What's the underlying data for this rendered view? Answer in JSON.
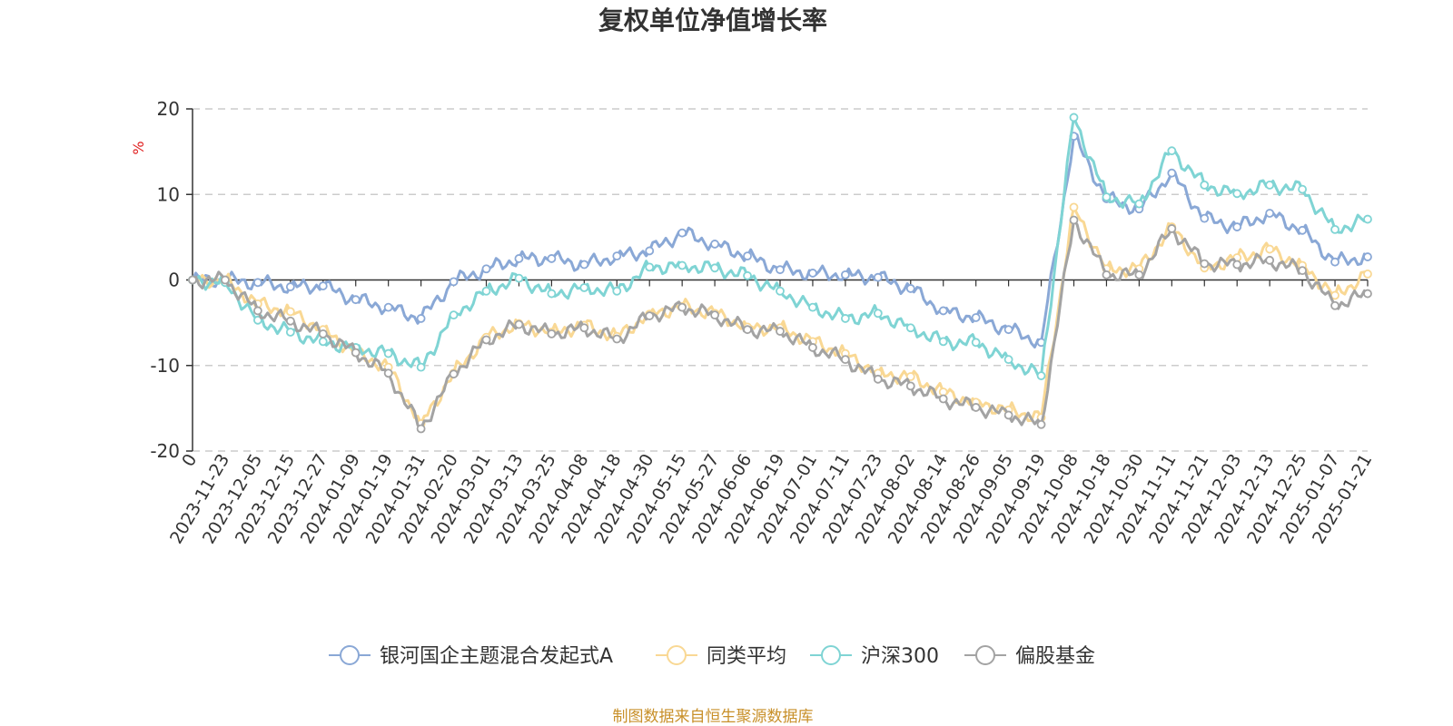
{
  "chart_data": {
    "type": "line",
    "title": "复权单位净值增长率",
    "ylabel": "%",
    "ylim": [
      -20,
      20
    ],
    "yticks": [
      20,
      10,
      0,
      -10,
      -20
    ],
    "grid": true,
    "legend_position": "bottom",
    "source": "制图数据来自恒生聚源数据库",
    "x": [
      "0",
      "2023-11-23",
      "2023-12-05",
      "2023-12-15",
      "2023-12-27",
      "2024-01-09",
      "2024-01-19",
      "2024-01-31",
      "2024-02-20",
      "2024-03-01",
      "2024-03-13",
      "2024-03-25",
      "2024-04-08",
      "2024-04-18",
      "2024-04-30",
      "2024-05-15",
      "2024-05-27",
      "2024-06-06",
      "2024-06-19",
      "2024-07-01",
      "2024-07-11",
      "2024-07-23",
      "2024-08-02",
      "2024-08-14",
      "2024-08-26",
      "2024-09-05",
      "2024-09-19",
      "2024-10-08",
      "2024-10-18",
      "2024-10-30",
      "2024-11-11",
      "2024-11-21",
      "2024-12-03",
      "2024-12-13",
      "2024-12-25",
      "2025-01-07",
      "2025-01-21"
    ],
    "series": [
      {
        "name": "银河国企主题混合发起式A",
        "color": "#8aa8d6",
        "values": [
          0,
          0,
          -0.3,
          -0.8,
          -0.7,
          -2.3,
          -3.2,
          -4.5,
          -0.2,
          1.3,
          2.5,
          2.5,
          1.8,
          2.8,
          3.4,
          5.5,
          4.2,
          2.8,
          1.2,
          0.8,
          0.6,
          0.3,
          -1.0,
          -3.6,
          -4.4,
          -5.8,
          -7.3,
          16.8,
          9.5,
          8.3,
          12.5,
          7.2,
          6.2,
          7.8,
          5.8,
          2.1,
          2.7
        ]
      },
      {
        "name": "同类平均",
        "color": "#f9d894",
        "values": [
          0,
          0,
          -2.8,
          -3.7,
          -5.8,
          -8.5,
          -10.2,
          -16.8,
          -10.9,
          -6.7,
          -5.1,
          -6.1,
          -5.3,
          -6.6,
          -4.0,
          -3.1,
          -3.9,
          -5.5,
          -5.6,
          -7.2,
          -8.6,
          -10.9,
          -11.3,
          -13.1,
          -14.3,
          -15.2,
          -16.1,
          8.5,
          1.3,
          1.3,
          6.2,
          1.4,
          2.6,
          3.6,
          1.7,
          -1.8,
          0.7
        ]
      },
      {
        "name": "沪深300",
        "color": "#7fd4d4",
        "values": [
          0,
          -0.3,
          -4.7,
          -6.1,
          -7.2,
          -7.9,
          -8.6,
          -10.2,
          -4.1,
          -1.3,
          0.2,
          -1.6,
          -0.9,
          -1.3,
          1.5,
          1.7,
          1.4,
          0.5,
          -1.3,
          -3.2,
          -4.5,
          -3.9,
          -5.6,
          -7.2,
          -7.3,
          -9.3,
          -11.2,
          19.0,
          9.7,
          8.9,
          15.1,
          11.1,
          10.1,
          11.1,
          10.6,
          5.9,
          7.1
        ]
      },
      {
        "name": "偏股基金",
        "color": "#a3a3a3",
        "values": [
          0,
          0,
          -3.6,
          -4.8,
          -6.3,
          -8.5,
          -10.9,
          -17.4,
          -11.0,
          -7.0,
          -5.2,
          -6.3,
          -5.6,
          -6.9,
          -4.2,
          -3.2,
          -4.1,
          -5.8,
          -6.0,
          -7.9,
          -9.3,
          -11.6,
          -12.4,
          -13.9,
          -14.9,
          -15.8,
          -16.9,
          7.0,
          0.6,
          0.6,
          6.0,
          1.9,
          1.8,
          2.3,
          1.1,
          -3.0,
          -1.6
        ]
      }
    ]
  }
}
